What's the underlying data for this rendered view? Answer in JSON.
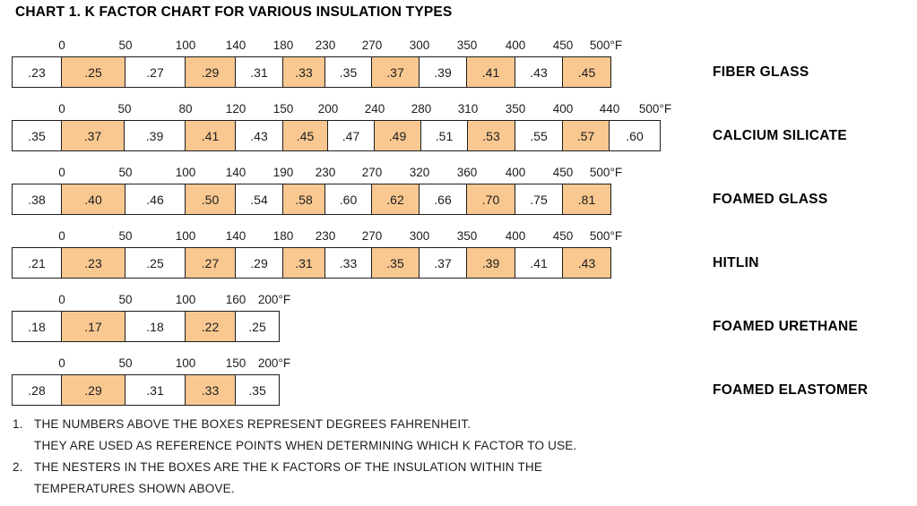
{
  "title": "CHART 1. K FACTOR CHART FOR VARIOUS INSULATION TYPES",
  "colors": {
    "highlight": "#F9C891",
    "border": "#1E1E1E",
    "text": "#1D1D1D"
  },
  "chart_data": {
    "type": "table",
    "title": "CHART 1. K FACTOR CHART FOR VARIOUS INSULATION TYPES",
    "unit": "°F",
    "rows": [
      {
        "label": "FIBER GLASS",
        "temps": [
          "0",
          "50",
          "100",
          "140",
          "180",
          "230",
          "270",
          "300",
          "350",
          "400",
          "450",
          "500°F"
        ],
        "k_factors": [
          ".23",
          ".25",
          ".27",
          ".29",
          ".31",
          ".33",
          ".35",
          ".37",
          ".39",
          ".41",
          ".43",
          ".45"
        ],
        "highlighted": [
          1,
          3,
          5,
          7,
          9,
          11
        ]
      },
      {
        "label": "CALCIUM SILICATE",
        "temps": [
          "0",
          "50",
          "80",
          "120",
          "150",
          "200",
          "240",
          "280",
          "310",
          "350",
          "400",
          "440",
          "500°F"
        ],
        "k_factors": [
          ".35",
          ".37",
          ".39",
          ".41",
          ".43",
          ".45",
          ".47",
          ".49",
          ".51",
          ".53",
          ".55",
          ".57",
          ".60"
        ],
        "highlighted": [
          1,
          3,
          5,
          7,
          9,
          11
        ]
      },
      {
        "label": "FOAMED GLASS",
        "temps": [
          "0",
          "50",
          "100",
          "140",
          "190",
          "230",
          "270",
          "320",
          "360",
          "400",
          "450",
          "500°F"
        ],
        "k_factors": [
          ".38",
          ".40",
          ".46",
          ".50",
          ".54",
          ".58",
          ".60",
          ".62",
          ".66",
          ".70",
          ".75",
          ".81"
        ],
        "highlighted": [
          1,
          3,
          5,
          7,
          9,
          11
        ]
      },
      {
        "label": "HITLIN",
        "temps": [
          "0",
          "50",
          "100",
          "140",
          "180",
          "230",
          "270",
          "300",
          "350",
          "400",
          "450",
          "500°F"
        ],
        "k_factors": [
          ".21",
          ".23",
          ".25",
          ".27",
          ".29",
          ".31",
          ".33",
          ".35",
          ".37",
          ".39",
          ".41",
          ".43"
        ],
        "highlighted": [
          1,
          3,
          5,
          7,
          9,
          11
        ]
      },
      {
        "label": "FOAMED URETHANE",
        "temps": [
          "0",
          "50",
          "100",
          "160",
          "200°F"
        ],
        "k_factors": [
          ".18",
          ".17",
          ".18",
          ".22",
          ".25"
        ],
        "highlighted": [
          1,
          3
        ]
      },
      {
        "label": "FOAMED ELASTOMER",
        "temps": [
          "0",
          "50",
          "100",
          "150",
          "200°F"
        ],
        "k_factors": [
          ".28",
          ".29",
          ".31",
          ".33",
          ".35"
        ],
        "highlighted": [
          1,
          3
        ]
      }
    ],
    "notes": [
      {
        "number": "1.",
        "lines": [
          "THE NUMBERS ABOVE THE BOXES REPRESENT DEGREES FAHRENHEIT.",
          "THEY ARE USED AS REFERENCE POINTS WHEN DETERMINING WHICH K FACTOR TO USE."
        ]
      },
      {
        "number": "2.",
        "lines": [
          "THE NESTERS IN THE BOXES ARE THE K FACTORS OF THE INSULATION WITHIN THE",
          "TEMPERATURES SHOWN ABOVE."
        ]
      }
    ]
  }
}
